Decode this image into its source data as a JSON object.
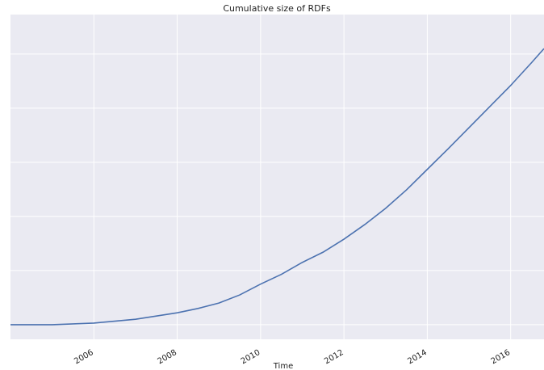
{
  "chart_data": {
    "type": "line",
    "title": "Cumulative size of RDFs",
    "x_label": "Time",
    "x": [
      2004,
      2005,
      2006,
      2007,
      2008,
      2008.5,
      2009,
      2009.5,
      2010,
      2010.5,
      2011,
      2011.5,
      2012,
      2012.5,
      2013,
      2013.5,
      2014,
      2014.5,
      2015,
      2015.5,
      2016,
      2016.5,
      2016.8
    ],
    "series": [
      {
        "color": "#4c72b0",
        "values": [
          0,
          0,
          0.03,
          0.1,
          0.22,
          0.3,
          0.4,
          0.55,
          0.75,
          0.93,
          1.15,
          1.34,
          1.58,
          1.85,
          2.15,
          2.49,
          2.87,
          3.25,
          3.64,
          4.03,
          4.42,
          4.84,
          5.1
        ]
      }
    ],
    "xlim": [
      2004,
      2016.8
    ],
    "xticks": [
      2006,
      2008,
      2010,
      2012,
      2014,
      2016
    ],
    "ylim": [
      -0.27,
      5.73
    ],
    "yticks": [
      0,
      1,
      2,
      3,
      4,
      5
    ],
    "grid": true
  }
}
